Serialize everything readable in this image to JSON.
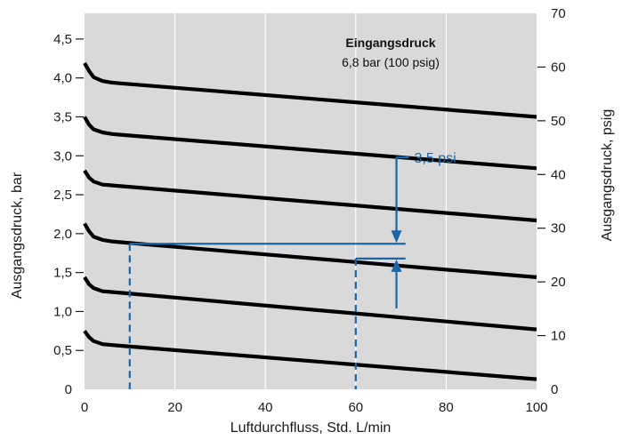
{
  "chart_data": {
    "type": "line",
    "title": "",
    "xlabel": "Luftdurchfluss, Std. L/min",
    "ylabel": "Ausgangsdruck, bar",
    "ylabel_right": "Ausgangsdruck, psig",
    "xlim": [
      0,
      100
    ],
    "ylim": [
      0,
      4.83
    ],
    "ylim_right": [
      0,
      70
    ],
    "grid": "vertical",
    "x_ticks": [
      0,
      20,
      40,
      60,
      80,
      100
    ],
    "x_tick_labels": [
      "0",
      "20",
      "40",
      "60",
      "80",
      "100"
    ],
    "y_ticks": [
      0,
      0.5,
      1.0,
      1.5,
      2.0,
      2.5,
      3.0,
      3.5,
      4.0,
      4.5
    ],
    "y_tick_labels": [
      "0",
      "0,5",
      "1,0",
      "1,5",
      "2,0",
      "2,5",
      "3,0",
      "3,5",
      "4,0",
      "4,5"
    ],
    "y_right_ticks": [
      0,
      10,
      20,
      30,
      40,
      50,
      60,
      70
    ],
    "y_right_tick_labels": [
      "0",
      "10",
      "20",
      "30",
      "40",
      "50",
      "60",
      "70"
    ],
    "legend": {
      "title": "Eingangsdruck",
      "subtitle": "6,8 bar (100 psig)",
      "position": "top-right"
    },
    "series": [
      {
        "x": [
          0,
          1,
          2,
          4,
          6,
          8,
          100
        ],
        "y": [
          0.75,
          0.67,
          0.62,
          0.58,
          0.57,
          0.56,
          0.13
        ]
      },
      {
        "x": [
          0,
          1,
          2,
          4,
          6,
          8,
          100
        ],
        "y": [
          1.44,
          1.35,
          1.3,
          1.26,
          1.25,
          1.24,
          0.77
        ]
      },
      {
        "x": [
          0,
          1,
          2,
          4,
          6,
          8,
          100
        ],
        "y": [
          2.13,
          2.03,
          1.96,
          1.92,
          1.9,
          1.89,
          1.44
        ]
      },
      {
        "x": [
          0,
          1,
          2,
          4,
          6,
          8,
          100
        ],
        "y": [
          2.81,
          2.72,
          2.67,
          2.63,
          2.62,
          2.61,
          2.17
        ]
      },
      {
        "x": [
          0,
          1,
          2,
          4,
          6,
          8,
          100
        ],
        "y": [
          3.5,
          3.4,
          3.34,
          3.3,
          3.28,
          3.27,
          2.84
        ]
      },
      {
        "x": [
          0,
          1,
          2,
          4,
          6,
          8,
          100
        ],
        "y": [
          4.19,
          4.09,
          4.01,
          3.96,
          3.94,
          3.93,
          3.5
        ]
      }
    ],
    "annotations": {
      "label": "3,5 psi",
      "color": "#1a66a8",
      "reference_1": {
        "x": 10,
        "y": 1.87,
        "x_end": 71
      },
      "reference_2": {
        "x": 60,
        "y": 1.68,
        "x_end": 71
      },
      "arrow_x": 69
    },
    "colors": {
      "plot_bg": "#d9d9d9",
      "line": "#000000",
      "annotation": "#1a66a8"
    }
  }
}
